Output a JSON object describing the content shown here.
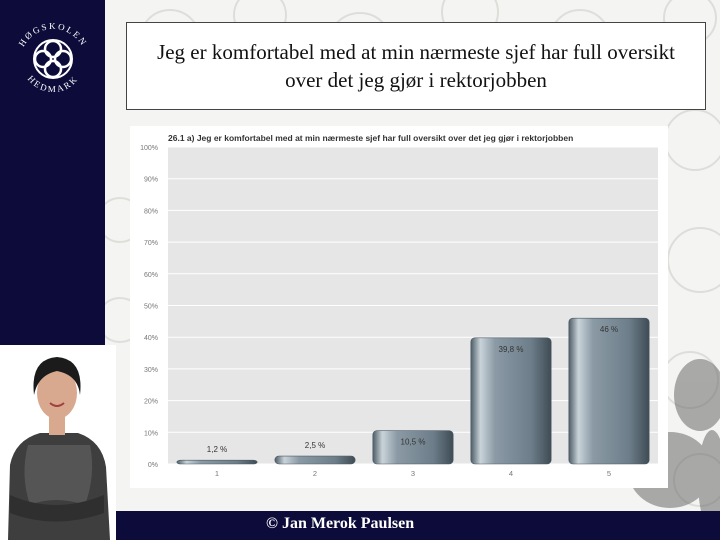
{
  "slide": {
    "title": "Jeg er komfortabel med at min nærmeste sjef har full oversikt over det jeg gjør i rektorjobben",
    "footer": "© Jan Merok Paulsen",
    "logo_text_top": "HØGSKOLEN",
    "logo_text_bottom": "HEDMARK"
  },
  "colors": {
    "sidebar": "#0c0b3a",
    "bar": "#70828f",
    "plot_bg": "#e6e6e6"
  },
  "chart_data": {
    "type": "bar",
    "title": "26.1 a) Jeg er komfortabel med at min nærmeste sjef har full oversikt over det jeg gjør i rektorjobben",
    "categories": [
      "1",
      "2",
      "3",
      "4",
      "5"
    ],
    "values": [
      1.2,
      2.5,
      10.5,
      39.8,
      46
    ],
    "value_labels": [
      "1,2 %",
      "2,5 %",
      "10,5 %",
      "39,8 %",
      "46 %"
    ],
    "y_ticks": [
      "0%",
      "10%",
      "20%",
      "30%",
      "40%",
      "50%",
      "60%",
      "70%",
      "80%",
      "90%",
      "100%"
    ],
    "ylim": [
      0,
      100
    ],
    "grid": true,
    "xlabel": "",
    "ylabel": ""
  }
}
